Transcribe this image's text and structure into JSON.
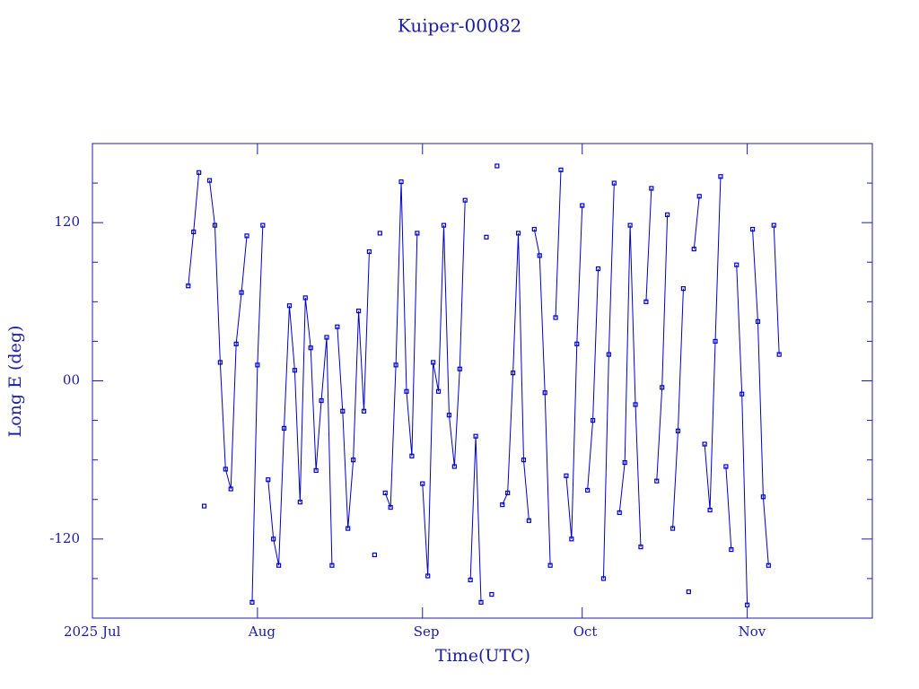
{
  "chart_data": {
    "type": "line",
    "title": "Kuiper-00082",
    "x_label": "Time(UTC)",
    "y_label": "Long E (deg)",
    "color": "#0000cc",
    "frame_color": "#1c1ca0",
    "xlim": [
      0,
      146.5
    ],
    "xticks": [
      {
        "value": 0,
        "label": "2025 Jul"
      },
      {
        "value": 31,
        "label": "Aug"
      },
      {
        "value": 62,
        "label": "Sep"
      },
      {
        "value": 92,
        "label": "Oct"
      },
      {
        "value": 123,
        "label": "Nov"
      }
    ],
    "ylim": [
      -180,
      180
    ],
    "yticks": [
      {
        "value": -120,
        "label": "-120"
      },
      {
        "value": 0,
        "label": "00"
      },
      {
        "value": 120,
        "label": "120"
      }
    ],
    "yminorticks": [
      -150,
      -90,
      -60,
      -30,
      30,
      60,
      90,
      150
    ],
    "series": [
      {
        "name": "Long E",
        "x": [
          18,
          19,
          20,
          21,
          22,
          23,
          24,
          25,
          26,
          27,
          28,
          29,
          30,
          31,
          32,
          33,
          34,
          35,
          36,
          37,
          38,
          39,
          40,
          41,
          42,
          43,
          44,
          45,
          46,
          47,
          48,
          49,
          50,
          51,
          52,
          53,
          54,
          55,
          56,
          57,
          58,
          59,
          60,
          61,
          62,
          63,
          64,
          65,
          66,
          67,
          68,
          69,
          70,
          71,
          72,
          73,
          74,
          75,
          76,
          77,
          78,
          79,
          80,
          81,
          82,
          83,
          84,
          85,
          86,
          87,
          88,
          89,
          90,
          91,
          92,
          93,
          94,
          95,
          96,
          97,
          98,
          99,
          100,
          101,
          102,
          103,
          104,
          105,
          106,
          107,
          108,
          109,
          110,
          111,
          112,
          113,
          114,
          115,
          116,
          117,
          118,
          119,
          120,
          121,
          122,
          123,
          124,
          125,
          126,
          127,
          128,
          129
        ],
        "values": [
          72,
          113,
          158,
          -95,
          152,
          118,
          14,
          -67,
          -82,
          28,
          67,
          110,
          -168,
          12,
          118,
          -75,
          -120,
          -140,
          -36,
          57,
          8,
          -92,
          63,
          25,
          -68,
          -15,
          33,
          -140,
          41,
          -23,
          -112,
          -60,
          53,
          -23,
          98,
          -132,
          112,
          -85,
          -96,
          12,
          151,
          -8,
          -57,
          112,
          -78,
          -148,
          14,
          -8,
          118,
          -26,
          -65,
          9,
          137,
          -151,
          -42,
          -168,
          109,
          -162,
          163,
          -94,
          -85,
          6,
          112,
          -60,
          -106,
          115,
          95,
          -9,
          -140,
          48,
          160,
          -72,
          -120,
          28,
          133,
          -83,
          -30,
          85,
          -150,
          20,
          150,
          -100,
          -62,
          118,
          -18,
          -126,
          60,
          146,
          -76,
          -5,
          126,
          -112,
          -38,
          70,
          -160,
          100,
          140,
          -48,
          -98,
          30,
          155,
          -65,
          -128,
          88,
          -10,
          -170,
          115,
          45,
          -88,
          -140,
          118,
          20
        ]
      }
    ]
  }
}
